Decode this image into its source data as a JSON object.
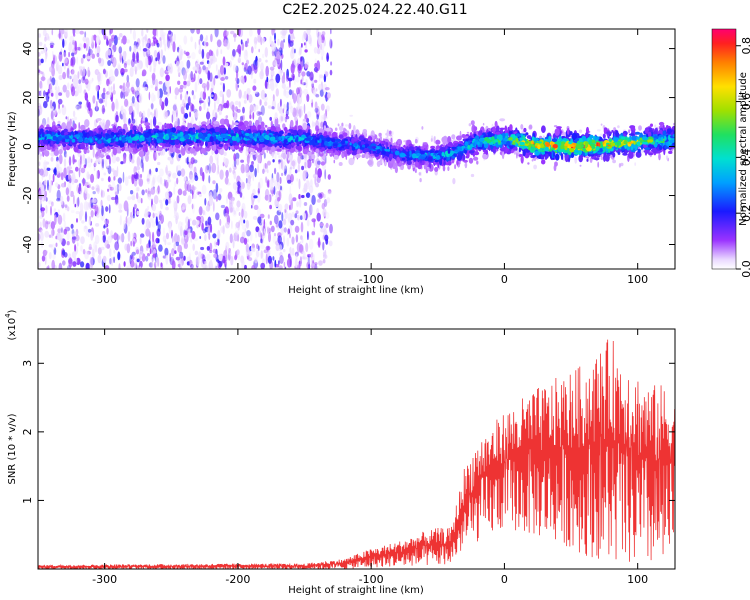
{
  "title": "C2E2.2025.024.22.40.G11",
  "chart_data": [
    {
      "type": "heatmap",
      "xlabel": "Height of straight line (km)",
      "ylabel": "Frequency (Hz)",
      "xlim": [
        -350,
        128
      ],
      "ylim": [
        -50,
        48
      ],
      "x_ticks": [
        -300,
        -200,
        -100,
        0,
        100
      ],
      "y_ticks": [
        -40,
        -20,
        0,
        20,
        40
      ],
      "colorbar": {
        "label": "Normalized spectral amplitude",
        "range": [
          0,
          0.86
        ],
        "ticks": [
          "0.0",
          "0.2",
          "0.4",
          "0.6",
          "0.8"
        ]
      },
      "ridge": {
        "x": [
          -350,
          -300,
          -250,
          -200,
          -150,
          -120,
          -100,
          -80,
          -60,
          -40,
          -20,
          0,
          20,
          40,
          60,
          80,
          100,
          128
        ],
        "center_freq": [
          4,
          3,
          4,
          4,
          3,
          1,
          0,
          -3,
          -4,
          -3,
          2,
          3,
          1,
          0,
          0,
          1,
          2,
          3
        ],
        "amplitude": [
          0.35,
          0.35,
          0.4,
          0.4,
          0.35,
          0.3,
          0.3,
          0.3,
          0.35,
          0.4,
          0.45,
          0.5,
          0.75,
          0.75,
          0.8,
          0.7,
          0.65,
          0.45
        ]
      },
      "scatter_region_x": [
        -350,
        -130
      ]
    },
    {
      "type": "line",
      "xlabel": "Height of straight line (km)",
      "ylabel": "SNR (10 * v/v)",
      "multiplier": "(x10",
      "multiplier_exp": "4",
      "xlim": [
        -350,
        128
      ],
      "ylim": [
        0,
        3.5
      ],
      "x_ticks": [
        -300,
        -200,
        -100,
        0,
        100
      ],
      "y_ticks": [
        1,
        2,
        3
      ],
      "color": "#ee3333",
      "envelope": {
        "x": [
          -350,
          -200,
          -150,
          -120,
          -100,
          -80,
          -60,
          -50,
          -40,
          -30,
          -20,
          -10,
          0,
          20,
          40,
          60,
          80,
          100,
          110,
          128
        ],
        "max": [
          0.06,
          0.08,
          0.08,
          0.15,
          0.3,
          0.4,
          0.55,
          0.6,
          0.6,
          1.5,
          1.9,
          2.1,
          2.3,
          2.6,
          2.8,
          3.0,
          3.4,
          2.9,
          2.7,
          2.7
        ],
        "min": [
          0.0,
          0.0,
          0.0,
          0.0,
          0.02,
          0.04,
          0.05,
          0.05,
          0.08,
          0.3,
          0.4,
          0.5,
          0.6,
          0.5,
          0.4,
          0.2,
          0.1,
          0.05,
          0.05,
          0.05
        ]
      }
    }
  ]
}
